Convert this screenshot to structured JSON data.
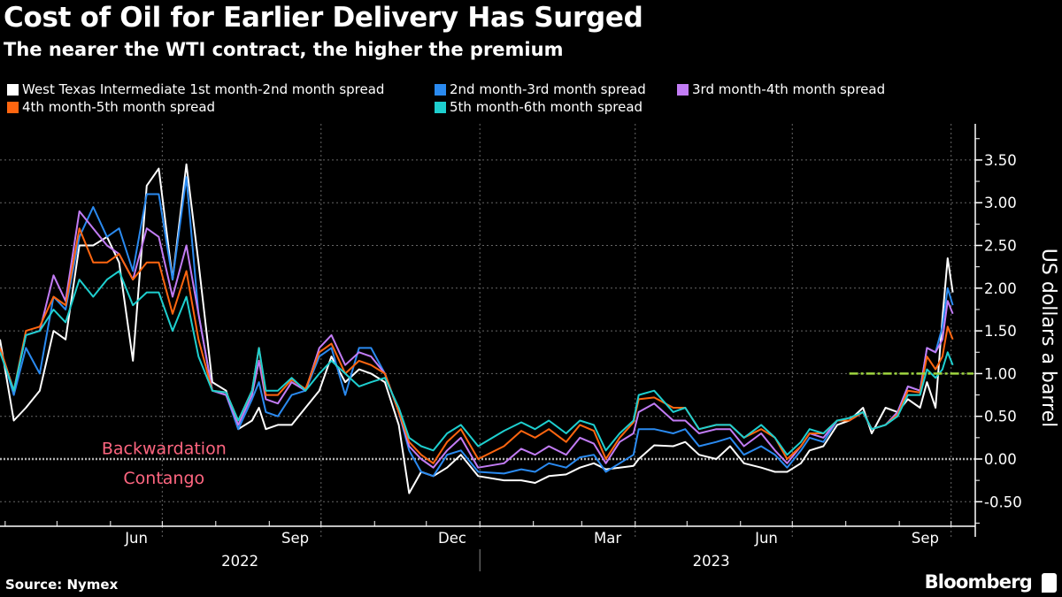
{
  "header": {
    "title": "Cost of Oil for Earlier Delivery Has Surged",
    "subtitle": "The nearer the WTI contract, the higher the premium"
  },
  "footer": {
    "source": "Source: Nymex",
    "brand": "Bloomberg",
    "brand_icon": "bloomberg-chat-icon"
  },
  "chart_data": {
    "type": "line",
    "title": "Cost of Oil for Earlier Delivery Has Surged",
    "subtitle": "The nearer the WTI contract, the higher the premium",
    "xlabel": "",
    "ylabel": "US dollars a barrel",
    "ylim": [
      -0.8,
      3.9
    ],
    "xlim": [
      "2022-03-29",
      "2023-10-15"
    ],
    "grid": true,
    "legend_position": "top-left",
    "y_ticks": [
      -0.5,
      0,
      0.5,
      1,
      1.5,
      2,
      2.5,
      3,
      3.5
    ],
    "y_tick_labels": [
      "-0.50",
      "0.00",
      "0.50",
      "1.00",
      "1.50",
      "2.00",
      "2.50",
      "3.00",
      "3.50"
    ],
    "x_tick_labels": [
      {
        "label": "Jun",
        "date": "2022-06-16"
      },
      {
        "label": "Sep",
        "date": "2022-09-16"
      },
      {
        "label": "Dec",
        "date": "2022-12-16"
      },
      {
        "label": "Mar",
        "date": "2023-03-16"
      },
      {
        "label": "Jun",
        "date": "2023-06-16"
      },
      {
        "label": "Sep",
        "date": "2023-09-16"
      }
    ],
    "year_labels": [
      {
        "label": "2022",
        "date": "2022-08-15"
      },
      {
        "label": "2023",
        "date": "2023-05-15"
      }
    ],
    "year_divider": "2023-01-01",
    "month_gridlines": [
      "2022-07-01",
      "2022-10-01",
      "2023-01-01",
      "2023-04-01",
      "2023-07-01",
      "2023-10-01"
    ],
    "annotations": [
      {
        "text": "Backwardation",
        "date": "2022-07-02",
        "y": 0.12,
        "color": "#ff6680"
      },
      {
        "text": "Contango",
        "date": "2022-07-02",
        "y": -0.23,
        "color": "#ff6680"
      }
    ],
    "reference_line": {
      "y": 1.0,
      "from": "2023-08-03",
      "color": "#9fd540"
    },
    "dates": [
      "2022-03-29",
      "2022-04-06",
      "2022-04-13",
      "2022-04-21",
      "2022-04-29",
      "2022-05-06",
      "2022-05-14",
      "2022-05-22",
      "2022-05-30",
      "2022-06-06",
      "2022-06-14",
      "2022-06-22",
      "2022-06-29",
      "2022-07-07",
      "2022-07-15",
      "2022-07-22",
      "2022-07-30",
      "2022-08-07",
      "2022-08-14",
      "2022-08-22",
      "2022-08-26",
      "2022-08-30",
      "2022-09-06",
      "2022-09-14",
      "2022-09-22",
      "2022-09-30",
      "2022-10-07",
      "2022-10-15",
      "2022-10-23",
      "2022-10-30",
      "2022-11-07",
      "2022-11-15",
      "2022-11-21",
      "2022-11-28",
      "2022-12-05",
      "2022-12-13",
      "2022-12-21",
      "2022-12-31",
      "2023-01-15",
      "2023-01-25",
      "2023-02-02",
      "2023-02-10",
      "2023-02-20",
      "2023-02-28",
      "2023-03-08",
      "2023-03-15",
      "2023-03-23",
      "2023-03-31",
      "2023-04-03",
      "2023-04-12",
      "2023-04-23",
      "2023-04-30",
      "2023-05-08",
      "2023-05-18",
      "2023-05-26",
      "2023-06-03",
      "2023-06-13",
      "2023-06-21",
      "2023-06-28",
      "2023-07-06",
      "2023-07-11",
      "2023-07-19",
      "2023-07-27",
      "2023-08-03",
      "2023-08-11",
      "2023-08-16",
      "2023-08-24",
      "2023-08-31",
      "2023-09-06",
      "2023-09-13",
      "2023-09-17",
      "2023-09-22",
      "2023-09-26",
      "2023-09-29",
      "2023-10-02"
    ],
    "series": [
      {
        "name": "West Texas Intermediate 1st month-2nd month spread",
        "color": "#ffffff",
        "values": [
          1.4,
          0.45,
          0.6,
          0.8,
          1.5,
          1.4,
          2.5,
          2.5,
          2.6,
          2.3,
          1.15,
          3.2,
          3.4,
          2.1,
          3.45,
          2.3,
          0.9,
          0.8,
          0.35,
          0.45,
          0.6,
          0.35,
          0.4,
          0.4,
          0.6,
          0.8,
          1.2,
          0.9,
          1.05,
          1.0,
          0.9,
          0.4,
          -0.4,
          -0.15,
          -0.2,
          -0.1,
          0.05,
          -0.2,
          -0.25,
          -0.25,
          -0.28,
          -0.2,
          -0.18,
          -0.1,
          -0.05,
          -0.12,
          -0.1,
          -0.08,
          0.0,
          0.16,
          0.15,
          0.2,
          0.05,
          0.0,
          0.15,
          -0.05,
          -0.1,
          -0.15,
          -0.15,
          -0.05,
          0.1,
          0.15,
          0.4,
          0.45,
          0.6,
          0.3,
          0.6,
          0.55,
          0.7,
          0.6,
          0.9,
          0.6,
          1.65,
          2.35,
          1.95
        ]
      },
      {
        "name": "2nd month-3rd month spread",
        "color": "#2a8af0",
        "values": [
          1.3,
          0.75,
          1.3,
          1.0,
          1.9,
          1.75,
          2.6,
          2.95,
          2.6,
          2.7,
          2.2,
          3.1,
          3.1,
          2.1,
          3.3,
          1.7,
          0.8,
          0.75,
          0.35,
          0.7,
          0.9,
          0.55,
          0.5,
          0.75,
          0.8,
          1.2,
          1.3,
          0.75,
          1.3,
          1.3,
          1.0,
          0.55,
          0.1,
          -0.15,
          -0.2,
          0.05,
          0.1,
          -0.15,
          -0.17,
          -0.12,
          -0.15,
          -0.05,
          -0.1,
          0.02,
          0.05,
          -0.15,
          -0.05,
          0.05,
          0.35,
          0.35,
          0.3,
          0.35,
          0.15,
          0.2,
          0.25,
          0.05,
          0.15,
          0.05,
          -0.1,
          0.1,
          0.25,
          0.2,
          0.45,
          0.45,
          0.55,
          0.35,
          0.4,
          0.55,
          0.85,
          0.8,
          1.3,
          1.25,
          1.55,
          2.0,
          1.8
        ]
      },
      {
        "name": "3rd month-4th month spread",
        "color": "#c27cf5",
        "values": [
          1.3,
          0.8,
          1.45,
          1.5,
          2.15,
          1.85,
          2.9,
          2.7,
          2.5,
          2.4,
          2.1,
          2.7,
          2.6,
          1.9,
          2.5,
          1.7,
          0.8,
          0.75,
          0.4,
          0.75,
          1.15,
          0.7,
          0.65,
          0.9,
          0.8,
          1.3,
          1.45,
          1.1,
          1.25,
          1.2,
          1.0,
          0.55,
          0.15,
          0.0,
          -0.1,
          0.1,
          0.25,
          -0.1,
          -0.05,
          0.12,
          0.05,
          0.15,
          0.05,
          0.25,
          0.18,
          -0.05,
          0.2,
          0.3,
          0.55,
          0.65,
          0.45,
          0.45,
          0.3,
          0.35,
          0.35,
          0.15,
          0.3,
          0.1,
          -0.05,
          0.15,
          0.3,
          0.25,
          0.45,
          0.45,
          0.55,
          0.35,
          0.4,
          0.55,
          0.85,
          0.8,
          1.3,
          1.25,
          1.4,
          1.85,
          1.7
        ]
      },
      {
        "name": "4th month-5th month spread",
        "color": "#ff6610",
        "values": [
          1.3,
          0.8,
          1.5,
          1.55,
          1.9,
          1.8,
          2.7,
          2.3,
          2.3,
          2.4,
          2.1,
          2.3,
          2.3,
          1.7,
          2.2,
          1.4,
          0.8,
          0.78,
          0.45,
          0.8,
          1.3,
          0.75,
          0.75,
          0.93,
          0.82,
          1.25,
          1.35,
          1.0,
          1.15,
          1.1,
          1.0,
          0.55,
          0.2,
          0.05,
          -0.05,
          0.2,
          0.35,
          0.0,
          0.15,
          0.33,
          0.25,
          0.35,
          0.2,
          0.4,
          0.33,
          0.0,
          0.25,
          0.43,
          0.7,
          0.72,
          0.6,
          0.6,
          0.35,
          0.4,
          0.4,
          0.25,
          0.35,
          0.25,
          0.0,
          0.15,
          0.3,
          0.3,
          0.45,
          0.45,
          0.55,
          0.35,
          0.4,
          0.52,
          0.8,
          0.78,
          1.2,
          1.05,
          1.2,
          1.55,
          1.4
        ]
      },
      {
        "name": "5th month-6th month spread",
        "color": "#1ecfcf",
        "values": [
          1.25,
          0.8,
          1.45,
          1.5,
          1.75,
          1.6,
          2.1,
          1.9,
          2.1,
          2.2,
          1.8,
          1.95,
          1.95,
          1.5,
          1.9,
          1.2,
          0.8,
          0.78,
          0.45,
          0.8,
          1.3,
          0.8,
          0.8,
          0.95,
          0.8,
          1.0,
          1.15,
          1.0,
          0.85,
          0.9,
          0.95,
          0.6,
          0.25,
          0.15,
          0.1,
          0.3,
          0.4,
          0.15,
          0.33,
          0.43,
          0.35,
          0.45,
          0.3,
          0.45,
          0.4,
          0.1,
          0.3,
          0.45,
          0.75,
          0.8,
          0.55,
          0.6,
          0.35,
          0.4,
          0.4,
          0.25,
          0.4,
          0.25,
          0.05,
          0.2,
          0.35,
          0.3,
          0.45,
          0.48,
          0.55,
          0.35,
          0.4,
          0.5,
          0.75,
          0.75,
          1.05,
          0.95,
          1.05,
          1.25,
          1.1
        ]
      }
    ]
  }
}
